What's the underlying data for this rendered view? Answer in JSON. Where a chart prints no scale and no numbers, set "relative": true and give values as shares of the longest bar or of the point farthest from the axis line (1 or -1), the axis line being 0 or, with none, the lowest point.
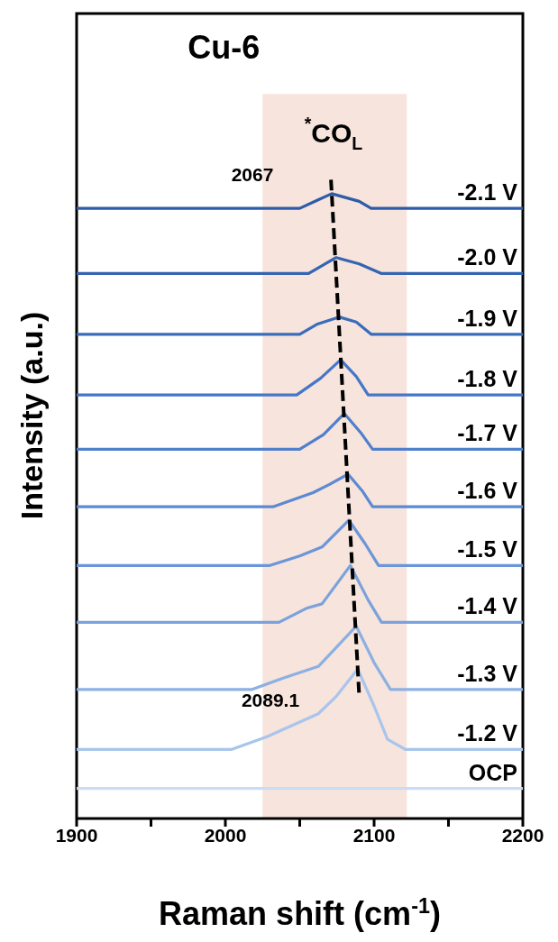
{
  "chart_data": {
    "type": "line",
    "title": "Cu-6",
    "xlabel": "Raman shift (cm$^{-1}$)",
    "ylabel": "Intensity (a.u.)",
    "relative": true,
    "xlim": [
      1900,
      2200
    ],
    "xticks": [
      1900,
      {
        "value": 1950,
        "label": null
      },
      2000,
      {
        "value": 2050,
        "label": null
      },
      2100,
      {
        "value": 2150,
        "label": null
      },
      2200
    ],
    "marker": "none",
    "line_style": "solid",
    "bands": [
      {
        "axis": "x",
        "from": 2025,
        "to": 2122,
        "color": "#f7e4dc"
      }
    ],
    "annotations": [
      "$^{*}$CO$_{L}$",
      "2067",
      "2089.1"
    ],
    "series": [
      {
        "name": "-2.1 V",
        "color": "#2e5ca8",
        "x": [
          1900,
          2050,
          2062,
          2071.5,
          2090,
          2098,
          2200
        ],
        "values": [
          0.955,
          0.955,
          0.968,
          0.978,
          0.966,
          0.955,
          0.955
        ]
      },
      {
        "name": "-2.0 V",
        "color": "#3464b2",
        "x": [
          1900,
          2056,
          2074.5,
          2090,
          2105,
          2200
        ],
        "values": [
          0.853,
          0.853,
          0.878,
          0.868,
          0.853,
          0.853
        ]
      },
      {
        "name": "-1.9 V",
        "color": "#3a6cbc",
        "x": [
          1900,
          2050,
          2062,
          2076.5,
          2088,
          2098,
          2200
        ],
        "values": [
          0.758,
          0.758,
          0.774,
          0.785,
          0.777,
          0.758,
          0.758
        ]
      },
      {
        "name": "-1.8 V",
        "color": "#4477c8",
        "x": [
          1900,
          2048,
          2064,
          2077.5,
          2088,
          2096,
          2200
        ],
        "values": [
          0.663,
          0.663,
          0.689,
          0.718,
          0.692,
          0.663,
          0.663
        ]
      },
      {
        "name": "-1.7 V",
        "color": "#4f80cc",
        "x": [
          1900,
          2050,
          2066,
          2080,
          2091,
          2099,
          2200
        ],
        "values": [
          0.578,
          0.578,
          0.601,
          0.634,
          0.604,
          0.578,
          0.578
        ]
      },
      {
        "name": "-1.6 V",
        "color": "#5c8ad2",
        "x": [
          1900,
          2032,
          2059,
          2070,
          2082.5,
          2092,
          2099,
          2200
        ],
        "values": [
          0.488,
          0.488,
          0.51,
          0.523,
          0.539,
          0.513,
          0.488,
          0.488
        ]
      },
      {
        "name": "-1.5 V",
        "color": "#6b96d8",
        "x": [
          1900,
          2030,
          2050,
          2065,
          2083,
          2094,
          2103,
          2200
        ],
        "values": [
          0.396,
          0.396,
          0.411,
          0.425,
          0.467,
          0.43,
          0.396,
          0.396
        ]
      },
      {
        "name": "-1.4 V",
        "color": "#7aa2dc",
        "x": [
          1900,
          2036,
          2054.5,
          2065,
          2084,
          2096,
          2105,
          2200
        ],
        "values": [
          0.307,
          0.307,
          0.329,
          0.336,
          0.396,
          0.342,
          0.307,
          0.307
        ]
      },
      {
        "name": "-1.3 V",
        "color": "#8cb0e2",
        "x": [
          1900,
          2018,
          2038,
          2062.5,
          2088,
          2100,
          2111,
          2200
        ],
        "values": [
          0.202,
          0.202,
          0.219,
          0.238,
          0.301,
          0.244,
          0.202,
          0.202
        ]
      },
      {
        "name": "-1.2 V",
        "color": "#a8c5ec",
        "x": [
          1900,
          2004,
          2028,
          2062.5,
          2074.5,
          2089,
          2100,
          2109,
          2121,
          2200
        ],
        "values": [
          0.108,
          0.108,
          0.128,
          0.164,
          0.191,
          0.234,
          0.176,
          0.124,
          0.108,
          0.108
        ]
      },
      {
        "name": "OCP",
        "color": "#cadcf4",
        "x": [
          1900,
          2200
        ],
        "values": [
          0.047,
          0.047
        ]
      },
      {
        "type": "line",
        "color": "#000000",
        "line_style": "dashed",
        "x": [
          2071,
          2090
        ],
        "values": [
          1.0,
          0.191
        ]
      }
    ]
  }
}
